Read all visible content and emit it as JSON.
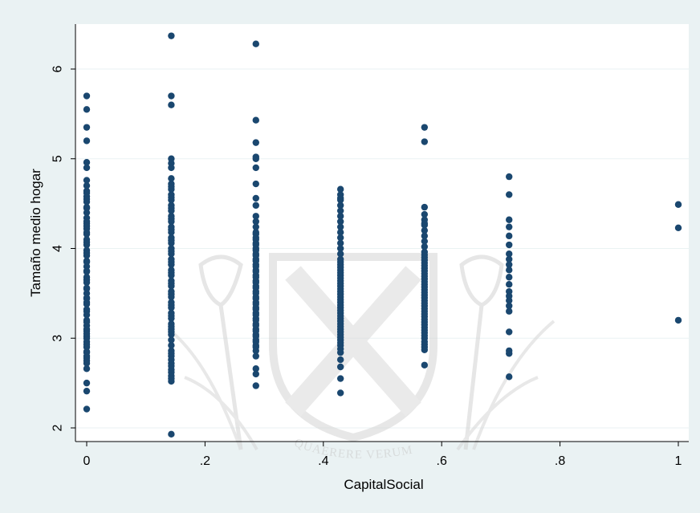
{
  "chart_data": {
    "type": "scatter",
    "xlabel": "CapitalSocial",
    "ylabel": "Tamaño medio hogar",
    "xlim": [
      0,
      1
    ],
    "ylim": [
      1.85,
      6.5
    ],
    "x_ticks": [
      0,
      0.2,
      0.4,
      0.6,
      0.8,
      1
    ],
    "x_tick_labels": [
      "0",
      ".2",
      ".4",
      ".6",
      ".8",
      "1"
    ],
    "y_ticks": [
      2,
      3,
      4,
      5,
      6
    ],
    "y_tick_labels": [
      "2",
      "3",
      "4",
      "5",
      "6"
    ],
    "grid": true,
    "marker_color": "#1a476f",
    "series": [
      {
        "x": [
          0,
          0,
          0,
          0,
          0,
          0,
          0,
          0,
          0,
          0,
          0,
          0,
          0,
          0,
          0,
          0,
          0,
          0,
          0,
          0,
          0,
          0,
          0,
          0,
          0,
          0,
          0,
          0,
          0,
          0,
          0,
          0,
          0,
          0,
          0,
          0,
          0,
          0,
          0,
          0,
          0,
          0,
          0,
          0,
          0,
          0,
          0,
          0,
          0,
          0,
          0,
          0,
          0,
          0,
          0,
          0,
          0,
          0,
          0,
          0,
          0,
          0,
          0,
          0,
          0,
          0,
          0,
          0,
          0.143,
          0.143,
          0.143,
          0.143,
          0.143,
          0.143,
          0.143,
          0.143,
          0.143,
          0.143,
          0.143,
          0.143,
          0.143,
          0.143,
          0.143,
          0.143,
          0.143,
          0.143,
          0.143,
          0.143,
          0.143,
          0.143,
          0.143,
          0.143,
          0.143,
          0.143,
          0.143,
          0.143,
          0.143,
          0.143,
          0.143,
          0.143,
          0.143,
          0.143,
          0.143,
          0.143,
          0.143,
          0.143,
          0.143,
          0.143,
          0.143,
          0.143,
          0.143,
          0.143,
          0.143,
          0.143,
          0.143,
          0.143,
          0.143,
          0.143,
          0.143,
          0.143,
          0.143,
          0.143,
          0.143,
          0.143,
          0.143,
          0.143,
          0.143,
          0.143,
          0.143,
          0.143,
          0.143,
          0.143,
          0.143,
          0.286,
          0.286,
          0.286,
          0.286,
          0.286,
          0.286,
          0.286,
          0.286,
          0.286,
          0.286,
          0.286,
          0.286,
          0.286,
          0.286,
          0.286,
          0.286,
          0.286,
          0.286,
          0.286,
          0.286,
          0.286,
          0.286,
          0.286,
          0.286,
          0.286,
          0.286,
          0.286,
          0.286,
          0.286,
          0.286,
          0.286,
          0.286,
          0.286,
          0.286,
          0.286,
          0.286,
          0.286,
          0.286,
          0.286,
          0.286,
          0.286,
          0.286,
          0.286,
          0.286,
          0.286,
          0.286,
          0.286,
          0.286,
          0.286,
          0.286,
          0.286,
          0.286,
          0.286,
          0.286,
          0.286,
          0.286,
          0.286,
          0.286,
          0.286,
          0.286,
          0.286,
          0.429,
          0.429,
          0.429,
          0.429,
          0.429,
          0.429,
          0.429,
          0.429,
          0.429,
          0.429,
          0.429,
          0.429,
          0.429,
          0.429,
          0.429,
          0.429,
          0.429,
          0.429,
          0.429,
          0.429,
          0.429,
          0.429,
          0.429,
          0.429,
          0.429,
          0.429,
          0.429,
          0.429,
          0.429,
          0.429,
          0.429,
          0.429,
          0.429,
          0.429,
          0.429,
          0.429,
          0.429,
          0.429,
          0.429,
          0.429,
          0.429,
          0.429,
          0.429,
          0.429,
          0.429,
          0.429,
          0.429,
          0.429,
          0.429,
          0.429,
          0.429,
          0.429,
          0.429,
          0.571,
          0.571,
          0.571,
          0.571,
          0.571,
          0.571,
          0.571,
          0.571,
          0.571,
          0.571,
          0.571,
          0.571,
          0.571,
          0.571,
          0.571,
          0.571,
          0.571,
          0.571,
          0.571,
          0.571,
          0.571,
          0.571,
          0.571,
          0.571,
          0.571,
          0.571,
          0.571,
          0.571,
          0.571,
          0.571,
          0.571,
          0.571,
          0.571,
          0.571,
          0.571,
          0.571,
          0.571,
          0.571,
          0.571,
          0.571,
          0.571,
          0.571,
          0.571,
          0.571,
          0.571,
          0.571,
          0.571,
          0.571,
          0.571,
          0.714,
          0.714,
          0.714,
          0.714,
          0.714,
          0.714,
          0.714,
          0.714,
          0.714,
          0.714,
          0.714,
          0.714,
          0.714,
          0.714,
          0.714,
          0.714,
          0.714,
          0.714,
          0.714,
          0.714,
          0.714,
          1,
          1,
          1
        ],
        "y": [
          2.21,
          2.41,
          2.5,
          2.66,
          2.72,
          2.78,
          2.84,
          2.9,
          2.96,
          3.02,
          3.08,
          3.14,
          3.2,
          3.26,
          3.32,
          3.38,
          3.44,
          3.5,
          3.56,
          3.62,
          3.68,
          3.74,
          3.8,
          3.86,
          3.92,
          3.98,
          4.04,
          4.1,
          4.16,
          4.22,
          4.28,
          4.34,
          4.4,
          4.46,
          4.52,
          4.58,
          4.64,
          4.7,
          4.76,
          4.9,
          4.96,
          5.2,
          5.35,
          5.55,
          5.7,
          2.75,
          2.8,
          2.85,
          2.93,
          3.0,
          3.1,
          3.18,
          3.3,
          3.4,
          3.55,
          3.65,
          3.75,
          3.85,
          3.95,
          4.07,
          4.18,
          4.3,
          4.45,
          4.55,
          4.62,
          3.05,
          3.45,
          4.25,
          1.93,
          2.52,
          2.58,
          2.65,
          2.72,
          2.8,
          2.86,
          2.92,
          2.98,
          3.04,
          3.1,
          3.16,
          3.22,
          3.28,
          3.34,
          3.4,
          3.46,
          3.52,
          3.58,
          3.64,
          3.7,
          3.76,
          3.82,
          3.88,
          3.94,
          4.0,
          4.06,
          4.12,
          4.18,
          4.24,
          4.3,
          4.36,
          4.42,
          4.48,
          4.54,
          4.6,
          4.66,
          4.72,
          4.78,
          4.9,
          5.0,
          5.6,
          5.7,
          6.37,
          2.55,
          2.62,
          2.69,
          2.76,
          2.83,
          3.07,
          3.13,
          3.25,
          3.37,
          3.49,
          3.61,
          3.73,
          3.85,
          3.97,
          4.09,
          4.21,
          4.33,
          4.45,
          4.57,
          4.69,
          4.95,
          2.47,
          2.6,
          2.66,
          2.8,
          2.86,
          2.92,
          2.98,
          3.04,
          3.1,
          3.16,
          3.22,
          3.28,
          3.34,
          3.4,
          3.46,
          3.52,
          3.58,
          3.64,
          3.7,
          3.76,
          3.82,
          3.88,
          3.94,
          4.0,
          4.06,
          4.12,
          4.18,
          4.24,
          4.3,
          4.36,
          4.48,
          4.56,
          4.72,
          4.9,
          5.0,
          5.02,
          5.18,
          5.43,
          6.28,
          2.9,
          2.96,
          3.02,
          3.08,
          3.14,
          3.2,
          3.26,
          3.32,
          3.38,
          3.44,
          3.5,
          3.56,
          3.62,
          3.68,
          3.74,
          3.8,
          3.86,
          3.92,
          3.98,
          4.04,
          4.1,
          4.16,
          2.39,
          2.55,
          2.68,
          2.76,
          2.84,
          2.92,
          2.98,
          3.04,
          3.1,
          3.16,
          3.22,
          3.28,
          3.34,
          3.4,
          3.46,
          3.52,
          3.58,
          3.64,
          3.7,
          3.76,
          3.82,
          3.88,
          3.94,
          4.0,
          4.06,
          4.12,
          4.18,
          4.24,
          4.3,
          4.36,
          4.42,
          4.48,
          4.54,
          4.6,
          4.66,
          2.88,
          2.95,
          3.01,
          3.07,
          3.13,
          3.19,
          3.25,
          3.31,
          3.37,
          3.43,
          3.49,
          3.55,
          3.61,
          3.67,
          3.73,
          3.79,
          3.85,
          4.56,
          2.7,
          2.87,
          2.93,
          3.0,
          3.06,
          3.12,
          3.18,
          3.24,
          3.3,
          3.36,
          3.42,
          3.48,
          3.54,
          3.6,
          3.66,
          3.72,
          3.78,
          3.84,
          3.9,
          3.96,
          4.02,
          4.08,
          4.14,
          4.2,
          4.26,
          4.32,
          4.38,
          4.46,
          5.19,
          5.35,
          2.9,
          2.96,
          3.03,
          3.09,
          3.15,
          3.21,
          3.27,
          3.33,
          3.39,
          3.45,
          3.51,
          3.57,
          3.63,
          3.69,
          3.75,
          3.81,
          3.87,
          3.93,
          4.28,
          2.57,
          2.83,
          2.86,
          3.07,
          3.3,
          3.36,
          3.42,
          3.52,
          3.6,
          3.68,
          3.76,
          3.82,
          3.88,
          3.94,
          4.04,
          4.14,
          4.24,
          4.32,
          4.6,
          4.8,
          3.47,
          3.2,
          4.23,
          4.49
        ]
      }
    ]
  },
  "watermark": {
    "motto": "QUAERERE VERUM"
  }
}
